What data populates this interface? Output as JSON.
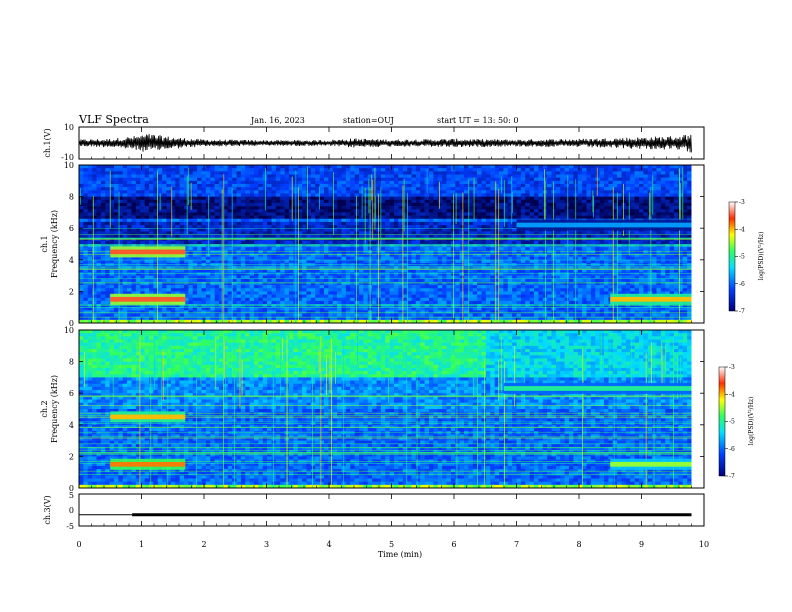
{
  "header": {
    "title": "VLF Spectra",
    "date": "Jan. 16, 2023",
    "station": "station=OUJ",
    "start": "start UT =  13: 50: 0"
  },
  "chart_data": [
    {
      "type": "line",
      "panel": "waveform",
      "ylabel": "ch.1(V)",
      "ylim": [
        -10,
        10
      ],
      "yticks": [
        "10",
        "-10"
      ],
      "x": [
        0,
        0.5,
        0.9,
        1.1,
        1.5,
        2,
        3,
        4,
        4.4,
        5,
        5.5,
        6,
        7,
        8,
        9,
        9.5,
        9.8
      ],
      "amplitude": [
        1.5,
        1.8,
        3,
        4,
        2.5,
        1.5,
        1.2,
        1.3,
        2,
        1.5,
        1.6,
        1.8,
        1.5,
        1.8,
        2.5,
        3,
        4
      ]
    },
    {
      "type": "heatmap",
      "panel": "ch1",
      "ylabel": "ch.1\nFrequency (kHz)",
      "ylim": [
        0,
        10
      ],
      "yticks": [
        "0",
        "2",
        "4",
        "6",
        "8",
        "10"
      ],
      "colorbar": {
        "label": "log(PSD)(V²/Hz)",
        "ticks": [
          "-3",
          "-4",
          "-5",
          "-6",
          "-7"
        ],
        "range": [
          -7,
          -3
        ]
      },
      "bands": [
        {
          "t0": 0.5,
          "t1": 1.7,
          "f": 4.5,
          "level": -3.5
        },
        {
          "t0": 0.5,
          "t1": 1.7,
          "f": 1.5,
          "level": -3.5
        },
        {
          "t0": 7.0,
          "t1": 9.8,
          "f": 6.2,
          "level": -5.7
        },
        {
          "t0": 8.5,
          "t1": 9.8,
          "f": 1.5,
          "level": -4.0
        }
      ]
    },
    {
      "type": "heatmap",
      "panel": "ch2",
      "ylabel": "ch.2\nFrequency (kHz)",
      "ylim": [
        0,
        10
      ],
      "yticks": [
        "0",
        "2",
        "4",
        "6",
        "8",
        "10"
      ],
      "colorbar": {
        "label": "log(PSD)(V²/Hz)",
        "ticks": [
          "-3",
          "-4",
          "-5",
          "-6",
          "-7"
        ],
        "range": [
          -7,
          -3
        ]
      },
      "bands": [
        {
          "t0": 0.5,
          "t1": 1.7,
          "f": 4.5,
          "level": -4.0
        },
        {
          "t0": 0.5,
          "t1": 1.7,
          "f": 1.5,
          "level": -3.8
        },
        {
          "t0": 6.8,
          "t1": 9.8,
          "f": 6.3,
          "level": -5.0
        },
        {
          "t0": 8.5,
          "t1": 9.8,
          "f": 1.5,
          "level": -4.5
        }
      ]
    },
    {
      "type": "line",
      "panel": "ch3",
      "ylabel": "ch.3(V)",
      "ylim": [
        -5,
        5
      ],
      "yticks": [
        "5",
        "0",
        "-5"
      ],
      "x": [
        0,
        0.85,
        0.85,
        9.8
      ],
      "y": [
        -1.5,
        -1.5,
        -1.5,
        -1.5
      ]
    }
  ],
  "xaxis": {
    "label": "Time (min)",
    "range": [
      0,
      10
    ],
    "ticks": [
      "0",
      "1",
      "2",
      "3",
      "4",
      "5",
      "6",
      "7",
      "8",
      "9",
      "10"
    ]
  }
}
